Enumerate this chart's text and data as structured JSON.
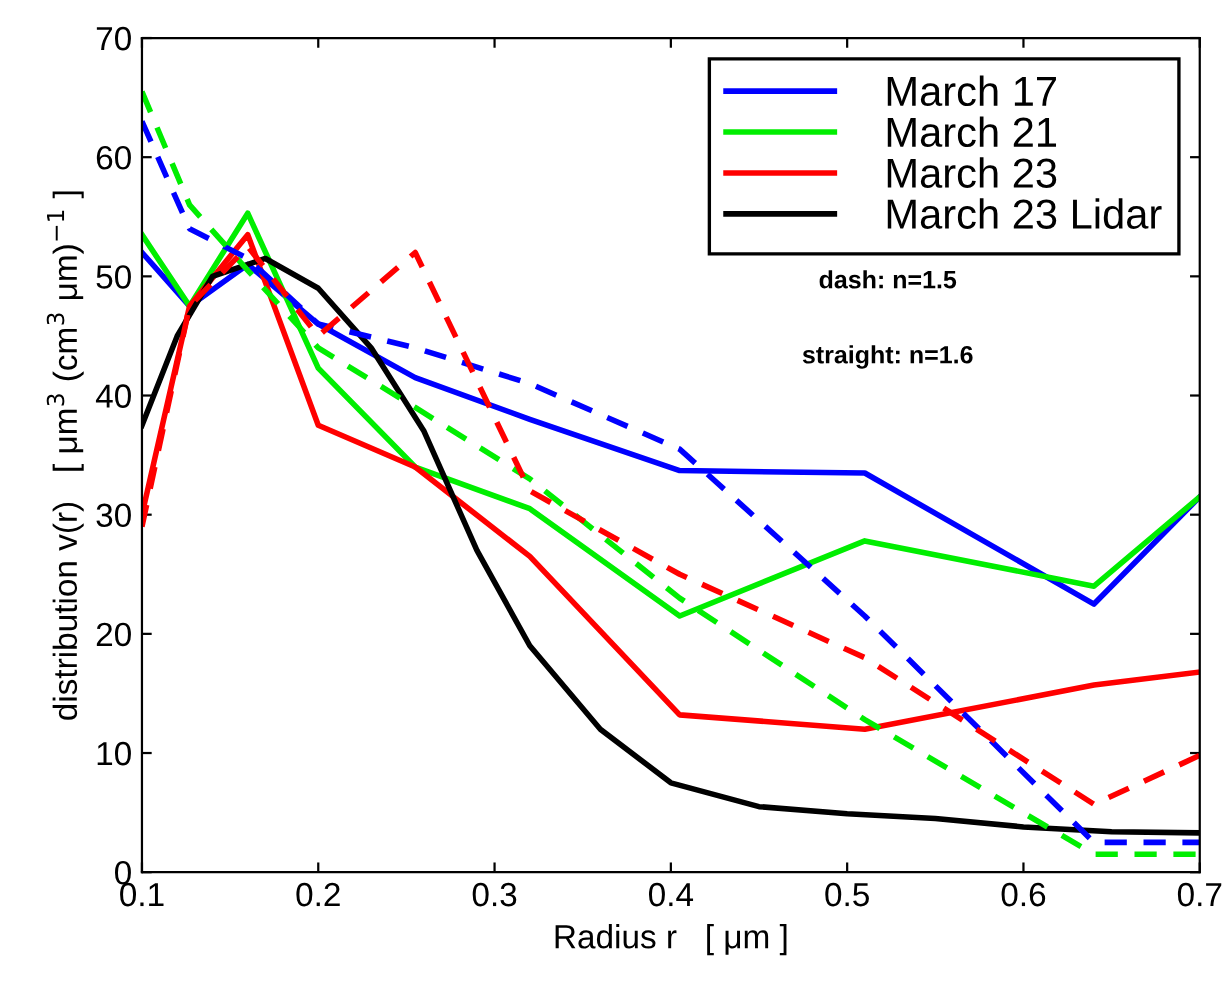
{
  "chart_data": {
    "type": "line",
    "xlabel": "Radius r   [ μm ]",
    "ylabel": "distribution v(r)   [ μm$^{3}$ (cm$^{3}$ μm)$^{−1}$ ]",
    "xlim": [
      0.1,
      0.7
    ],
    "ylim": [
      0,
      70
    ],
    "xticks": [
      0.1,
      0.2,
      0.3,
      0.4,
      0.5,
      0.6,
      0.7
    ],
    "yticks": [
      0,
      10,
      20,
      30,
      40,
      50,
      60,
      70
    ],
    "grid": false,
    "legend": "top right",
    "marker": "none",
    "annotations": [
      "dash: n=1.5",
      "straight: n=1.6"
    ],
    "x": [
      0.1,
      0.127,
      0.16,
      0.2,
      0.255,
      0.32,
      0.405,
      0.51,
      0.64,
      0.7
    ],
    "series": [
      {
        "name": "March 17",
        "color": "#0000ff",
        "line_style": "solid",
        "values": [
          52,
          47.5,
          51,
          46,
          41.5,
          38,
          33.7,
          33.5,
          22.5,
          31.5
        ]
      },
      {
        "name": "March 21",
        "color": "#00ee00",
        "line_style": "solid",
        "values": [
          53.5,
          47.5,
          55.3,
          42.3,
          34,
          30.5,
          21.5,
          27.8,
          24,
          31.5
        ]
      },
      {
        "name": "March 23",
        "color": "#ff0000",
        "line_style": "solid",
        "values": [
          30,
          47.5,
          53.5,
          37.5,
          34,
          26.5,
          13.2,
          12,
          15.7,
          16.8
        ]
      },
      {
        "name": "March 23 Lidar",
        "color": "#000000",
        "line_style": "solid",
        "x": [
          0.1,
          0.12,
          0.14,
          0.17,
          0.2,
          0.23,
          0.26,
          0.29,
          0.32,
          0.36,
          0.4,
          0.45,
          0.5,
          0.55,
          0.6,
          0.65,
          0.7
        ],
        "values": [
          37.5,
          45,
          50,
          51.5,
          49,
          44,
          37,
          27,
          19,
          12,
          7.5,
          5.5,
          4.9,
          4.5,
          3.8,
          3.4,
          3.3
        ]
      },
      {
        "color": "#0000ff",
        "line_style": "dashed",
        "values": [
          63,
          54,
          51.5,
          46,
          44,
          41,
          35.5,
          21.5,
          2.5,
          2.5
        ]
      },
      {
        "color": "#00ee00",
        "line_style": "dashed",
        "values": [
          65.5,
          56,
          50.5,
          44,
          39,
          33,
          23,
          12.8,
          1.5,
          1.5
        ]
      },
      {
        "color": "#ff0000",
        "line_style": "dashed",
        "values": [
          29,
          47.5,
          52.5,
          45,
          52,
          32,
          25,
          18,
          5.7,
          9.8
        ]
      }
    ]
  }
}
